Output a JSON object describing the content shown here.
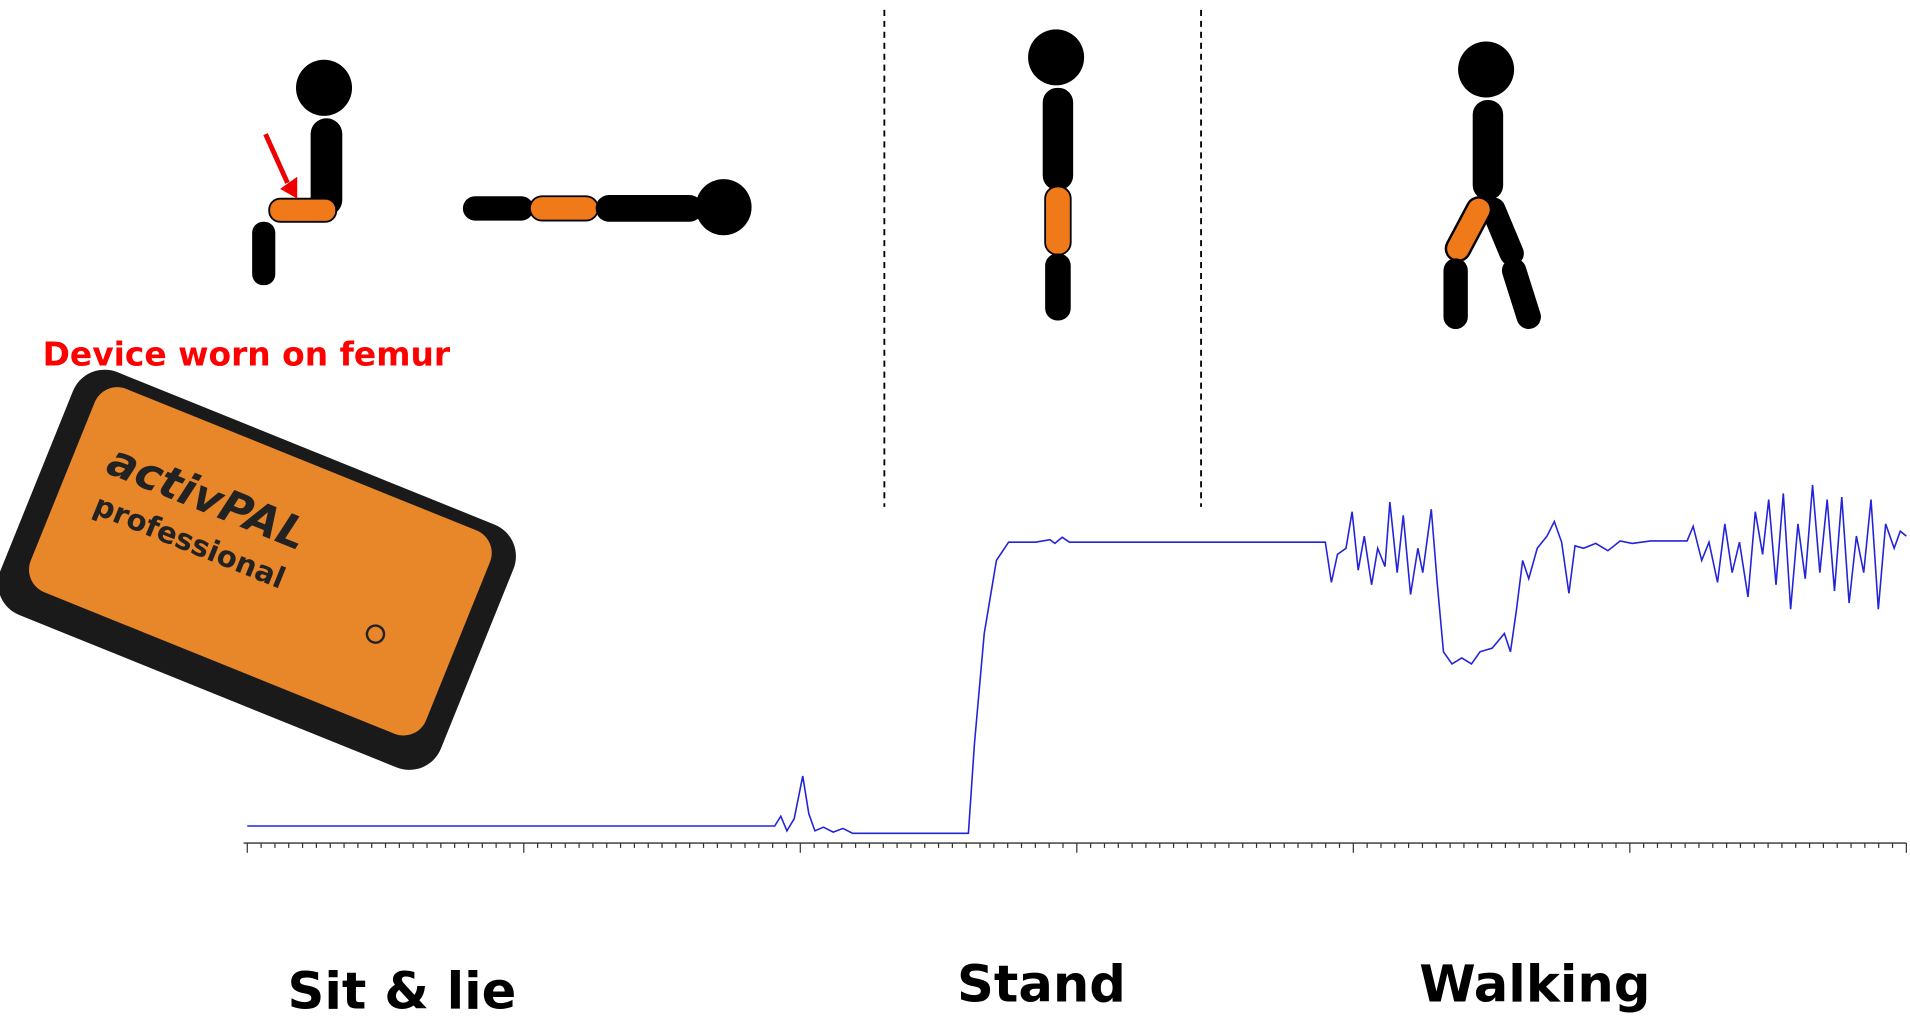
{
  "annotation": "Device worn on femur",
  "device": {
    "brand": "activPAL",
    "model": "professional"
  },
  "labels": [
    "Sit & lie",
    "Stand",
    "Walking"
  ]
}
